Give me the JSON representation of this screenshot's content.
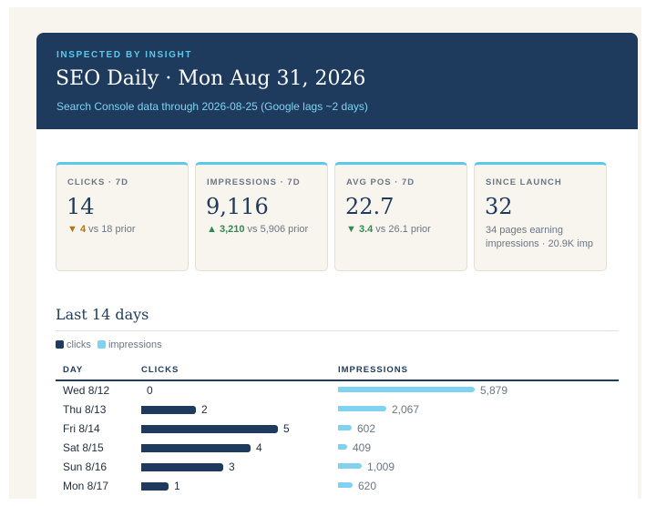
{
  "header": {
    "eyebrow": "INSPECTED BY INSIGHT",
    "title": "SEO Daily · Mon Aug 31, 2026",
    "subtitle": "Search Console data through 2026-08-25 (Google lags ~2 days)"
  },
  "kpis": [
    {
      "label": "CLICKS · 7D",
      "value": "14",
      "arrow": "▼",
      "delta": "4",
      "trend": "down",
      "prior": " vs 18 prior"
    },
    {
      "label": "IMPRESSIONS · 7D",
      "value": "9,116",
      "arrow": "▲",
      "delta": "3,210",
      "trend": "up",
      "prior": " vs 5,906 prior"
    },
    {
      "label": "AVG POS · 7D",
      "value": "22.7",
      "arrow": "▼",
      "delta": "3.4",
      "trend": "up",
      "prior": " vs 26.1 prior"
    },
    {
      "label": "SINCE LAUNCH",
      "value": "32",
      "note": "34 pages earning impressions · 20.9K imp"
    }
  ],
  "section": {
    "title": "Last 14 days",
    "legend_clicks": "clicks",
    "legend_impressions": "impressions"
  },
  "table": {
    "col_day": "DAY",
    "col_clicks": "CLICKS",
    "col_impressions": "IMPRESSIONS",
    "rows": [
      {
        "day": "Wed 8/12",
        "clicks": "0",
        "impressions": "5,879"
      },
      {
        "day": "Thu 8/13",
        "clicks": "2",
        "impressions": "2,067"
      },
      {
        "day": "Fri 8/14",
        "clicks": "5",
        "impressions": "602"
      },
      {
        "day": "Sat 8/15",
        "clicks": "4",
        "impressions": "409"
      },
      {
        "day": "Sun 8/16",
        "clicks": "3",
        "impressions": "1,009"
      },
      {
        "day": "Mon 8/17",
        "clicks": "1",
        "impressions": "620"
      }
    ]
  },
  "colors": {
    "header_bg": "#1e3a5c",
    "accent": "#5bc8ec",
    "clicks_bar": "#1e3a5c",
    "impressions_bar": "#7fd3f1",
    "trend_down": "#b5721c",
    "trend_up": "#2f8a55"
  }
}
